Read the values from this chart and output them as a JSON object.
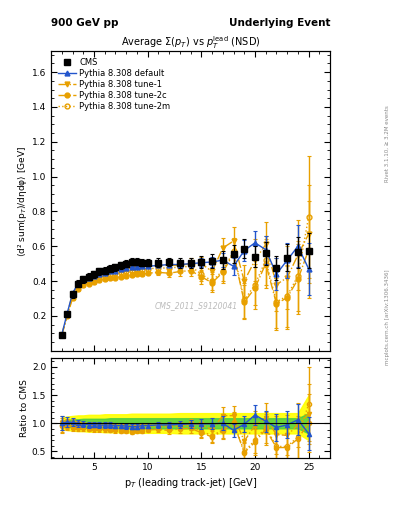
{
  "title_top_left": "900 GeV pp",
  "title_top_right": "Underlying Event",
  "plot_title": "Average $\\Sigma$(p$_T$) vs p$_T^{lead}$ (NSD)",
  "watermark": "CMS_2011_S9120041",
  "right_label_top": "Rivet 3.1.10, ≥ 3.2M events",
  "right_label_bottom": "mcplots.cern.ch [arXiv:1306.3436]",
  "xlabel": "p$_T$ (leading track-jet) [GeV]",
  "ylabel_main": "⟨d² sum(p$_T$)/dηdφ⟩ [GeV]",
  "ylabel_ratio": "Ratio to CMS",
  "ylim_main": [
    0.0,
    1.72
  ],
  "ylim_ratio": [
    0.38,
    2.15
  ],
  "yticks_main": [
    0.2,
    0.4,
    0.6,
    0.8,
    1.0,
    1.2,
    1.4,
    1.6
  ],
  "yticks_ratio": [
    0.5,
    1.0,
    1.5,
    2.0
  ],
  "xlim": [
    1,
    27
  ],
  "cms_x": [
    2.0,
    2.5,
    3.0,
    3.5,
    4.0,
    4.5,
    5.0,
    5.5,
    6.0,
    6.5,
    7.0,
    7.5,
    8.0,
    8.5,
    9.0,
    9.5,
    10.0,
    11.0,
    12.0,
    13.0,
    14.0,
    15.0,
    16.0,
    17.0,
    18.0,
    19.0,
    20.0,
    21.0,
    22.0,
    23.0,
    24.0,
    25.0
  ],
  "cms_y": [
    0.093,
    0.21,
    0.325,
    0.385,
    0.41,
    0.425,
    0.44,
    0.455,
    0.46,
    0.47,
    0.48,
    0.49,
    0.5,
    0.51,
    0.51,
    0.505,
    0.505,
    0.505,
    0.51,
    0.505,
    0.505,
    0.51,
    0.515,
    0.52,
    0.555,
    0.585,
    0.54,
    0.56,
    0.475,
    0.535,
    0.565,
    0.575
  ],
  "cms_yerr": [
    0.01,
    0.015,
    0.02,
    0.02,
    0.02,
    0.02,
    0.02,
    0.02,
    0.02,
    0.02,
    0.02,
    0.02,
    0.02,
    0.02,
    0.02,
    0.02,
    0.02,
    0.025,
    0.025,
    0.03,
    0.03,
    0.035,
    0.04,
    0.05,
    0.05,
    0.055,
    0.06,
    0.065,
    0.07,
    0.08,
    0.09,
    0.1
  ],
  "default_x": [
    2.0,
    2.5,
    3.0,
    3.5,
    4.0,
    4.5,
    5.0,
    5.5,
    6.0,
    6.5,
    7.0,
    7.5,
    8.0,
    8.5,
    9.0,
    9.5,
    10.0,
    11.0,
    12.0,
    13.0,
    14.0,
    15.0,
    16.0,
    17.0,
    18.0,
    19.0,
    20.0,
    21.0,
    22.0,
    23.0,
    24.0,
    25.0
  ],
  "default_y": [
    0.093,
    0.215,
    0.33,
    0.385,
    0.405,
    0.415,
    0.43,
    0.44,
    0.445,
    0.455,
    0.46,
    0.47,
    0.475,
    0.48,
    0.48,
    0.485,
    0.485,
    0.49,
    0.495,
    0.495,
    0.5,
    0.505,
    0.51,
    0.52,
    0.485,
    0.575,
    0.62,
    0.58,
    0.44,
    0.52,
    0.6,
    0.47
  ],
  "default_yerr": [
    0.005,
    0.008,
    0.01,
    0.01,
    0.01,
    0.01,
    0.01,
    0.01,
    0.01,
    0.01,
    0.01,
    0.01,
    0.01,
    0.01,
    0.01,
    0.01,
    0.01,
    0.012,
    0.015,
    0.018,
    0.02,
    0.025,
    0.03,
    0.04,
    0.05,
    0.06,
    0.07,
    0.08,
    0.09,
    0.1,
    0.12,
    0.15
  ],
  "tune1_x": [
    2.0,
    2.5,
    3.0,
    3.5,
    4.0,
    4.5,
    5.0,
    5.5,
    6.0,
    6.5,
    7.0,
    7.5,
    8.0,
    8.5,
    9.0,
    9.5,
    10.0,
    11.0,
    12.0,
    13.0,
    14.0,
    15.0,
    16.0,
    17.0,
    18.0,
    19.0,
    20.0,
    21.0,
    22.0,
    23.0,
    24.0,
    25.0
  ],
  "tune1_y": [
    0.093,
    0.21,
    0.325,
    0.38,
    0.4,
    0.41,
    0.425,
    0.435,
    0.445,
    0.455,
    0.46,
    0.465,
    0.47,
    0.475,
    0.48,
    0.485,
    0.485,
    0.49,
    0.49,
    0.49,
    0.5,
    0.5,
    0.455,
    0.59,
    0.63,
    0.4,
    0.52,
    0.61,
    0.38,
    0.42,
    0.55,
    0.67
  ],
  "tune1_yerr": [
    0.005,
    0.008,
    0.01,
    0.01,
    0.01,
    0.01,
    0.01,
    0.01,
    0.01,
    0.01,
    0.01,
    0.01,
    0.01,
    0.01,
    0.01,
    0.01,
    0.01,
    0.015,
    0.02,
    0.025,
    0.03,
    0.04,
    0.05,
    0.06,
    0.08,
    0.09,
    0.12,
    0.13,
    0.15,
    0.18,
    0.2,
    0.28
  ],
  "tune2c_x": [
    2.0,
    2.5,
    3.0,
    3.5,
    4.0,
    4.5,
    5.0,
    5.5,
    6.0,
    6.5,
    7.0,
    7.5,
    8.0,
    8.5,
    9.0,
    9.5,
    10.0,
    11.0,
    12.0,
    13.0,
    14.0,
    15.0,
    16.0,
    17.0,
    18.0,
    19.0,
    20.0,
    21.0,
    22.0,
    23.0,
    24.0,
    25.0
  ],
  "tune2c_y": [
    0.088,
    0.2,
    0.3,
    0.355,
    0.375,
    0.385,
    0.395,
    0.405,
    0.41,
    0.415,
    0.42,
    0.425,
    0.43,
    0.435,
    0.44,
    0.44,
    0.445,
    0.45,
    0.445,
    0.455,
    0.46,
    0.425,
    0.39,
    0.45,
    0.56,
    0.28,
    0.36,
    0.5,
    0.27,
    0.305,
    0.41,
    0.58
  ],
  "tune2c_yerr": [
    0.005,
    0.008,
    0.01,
    0.01,
    0.01,
    0.01,
    0.01,
    0.01,
    0.01,
    0.01,
    0.01,
    0.01,
    0.01,
    0.01,
    0.01,
    0.01,
    0.01,
    0.015,
    0.02,
    0.025,
    0.03,
    0.04,
    0.05,
    0.06,
    0.08,
    0.1,
    0.12,
    0.14,
    0.15,
    0.18,
    0.2,
    0.28
  ],
  "tune2m_x": [
    2.0,
    2.5,
    3.0,
    3.5,
    4.0,
    4.5,
    5.0,
    5.5,
    6.0,
    6.5,
    7.0,
    7.5,
    8.0,
    8.5,
    9.0,
    9.5,
    10.0,
    11.0,
    12.0,
    13.0,
    14.0,
    15.0,
    16.0,
    17.0,
    18.0,
    19.0,
    20.0,
    21.0,
    22.0,
    23.0,
    24.0,
    25.0
  ],
  "tune2m_y": [
    0.09,
    0.205,
    0.315,
    0.37,
    0.39,
    0.4,
    0.415,
    0.425,
    0.43,
    0.44,
    0.445,
    0.45,
    0.455,
    0.46,
    0.465,
    0.465,
    0.47,
    0.475,
    0.475,
    0.48,
    0.485,
    0.44,
    0.4,
    0.46,
    0.57,
    0.29,
    0.38,
    0.52,
    0.28,
    0.315,
    0.43,
    0.77
  ],
  "tune2m_yerr": [
    0.005,
    0.008,
    0.01,
    0.01,
    0.01,
    0.01,
    0.01,
    0.01,
    0.01,
    0.01,
    0.01,
    0.01,
    0.01,
    0.01,
    0.01,
    0.01,
    0.01,
    0.015,
    0.02,
    0.025,
    0.03,
    0.04,
    0.05,
    0.06,
    0.08,
    0.1,
    0.12,
    0.14,
    0.15,
    0.18,
    0.2,
    0.35
  ],
  "ratio_band_yellow_lo": [
    0.9,
    0.88,
    0.87,
    0.86,
    0.86,
    0.85,
    0.85,
    0.85,
    0.84,
    0.84,
    0.84,
    0.84,
    0.84,
    0.83,
    0.83,
    0.83,
    0.83,
    0.83,
    0.83,
    0.82,
    0.82,
    0.82,
    0.82,
    0.82,
    0.82,
    0.82,
    0.82,
    0.82,
    0.82,
    0.82,
    0.82,
    0.7
  ],
  "ratio_band_yellow_hi": [
    1.1,
    1.12,
    1.13,
    1.14,
    1.14,
    1.15,
    1.15,
    1.15,
    1.16,
    1.16,
    1.16,
    1.16,
    1.16,
    1.17,
    1.17,
    1.17,
    1.17,
    1.17,
    1.17,
    1.18,
    1.18,
    1.18,
    1.18,
    1.18,
    1.18,
    1.18,
    1.18,
    1.18,
    1.18,
    1.18,
    1.18,
    1.5
  ],
  "ratio_band_green_lo": [
    0.95,
    0.94,
    0.93,
    0.93,
    0.92,
    0.92,
    0.92,
    0.92,
    0.92,
    0.91,
    0.91,
    0.91,
    0.91,
    0.91,
    0.91,
    0.91,
    0.91,
    0.91,
    0.91,
    0.91,
    0.91,
    0.91,
    0.91,
    0.91,
    0.91,
    0.91,
    0.91,
    0.91,
    0.91,
    0.91,
    0.91,
    0.82
  ],
  "ratio_band_green_hi": [
    1.05,
    1.06,
    1.07,
    1.07,
    1.08,
    1.08,
    1.08,
    1.08,
    1.08,
    1.09,
    1.09,
    1.09,
    1.09,
    1.09,
    1.09,
    1.09,
    1.09,
    1.09,
    1.09,
    1.09,
    1.09,
    1.09,
    1.09,
    1.09,
    1.09,
    1.09,
    1.09,
    1.09,
    1.09,
    1.09,
    1.09,
    1.18
  ]
}
